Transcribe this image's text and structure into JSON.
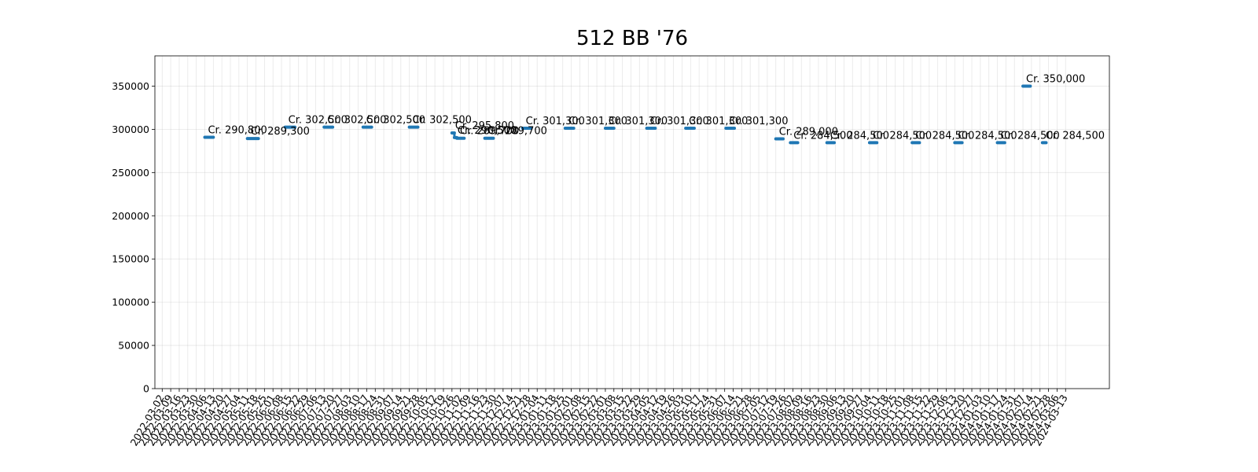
{
  "chart_data": {
    "type": "line",
    "title": "512 BB '76",
    "xlabel": "",
    "ylabel": "",
    "ylim": [
      0,
      385000
    ],
    "yticks": [
      0,
      50000,
      100000,
      150000,
      200000,
      250000,
      300000,
      350000
    ],
    "grid": true,
    "legend": "none",
    "color": "#1f77b4",
    "xtick_labels": [
      "2022-03-02",
      "2022-03-09",
      "2022-03-16",
      "2022-03-23",
      "2022-03-30",
      "2022-04-06",
      "2022-04-13",
      "2022-04-20",
      "2022-04-27",
      "2022-05-04",
      "2022-05-11",
      "2022-05-18",
      "2022-05-25",
      "2022-06-01",
      "2022-06-08",
      "2022-06-15",
      "2022-06-22",
      "2022-06-29",
      "2022-07-06",
      "2022-07-13",
      "2022-07-20",
      "2022-07-27",
      "2022-08-03",
      "2022-08-10",
      "2022-08-17",
      "2022-08-24",
      "2022-08-31",
      "2022-09-07",
      "2022-09-14",
      "2022-09-21",
      "2022-09-28",
      "2022-10-05",
      "2022-10-12",
      "2022-10-19",
      "2022-10-26",
      "2022-11-02",
      "2022-11-09",
      "2022-11-16",
      "2022-11-23",
      "2022-11-30",
      "2022-12-07",
      "2022-12-14",
      "2022-12-21",
      "2022-12-28",
      "2023-01-04",
      "2023-01-11",
      "2023-01-18",
      "2023-01-25",
      "2023-02-01",
      "2023-02-08",
      "2023-02-15",
      "2023-02-22",
      "2023-03-01",
      "2023-03-08",
      "2023-03-15",
      "2023-03-22",
      "2023-03-29",
      "2023-04-05",
      "2023-04-12",
      "2023-04-19",
      "2023-04-26",
      "2023-05-03",
      "2023-05-10",
      "2023-05-17",
      "2023-05-24",
      "2023-05-31",
      "2023-06-07",
      "2023-06-14",
      "2023-06-21",
      "2023-06-28",
      "2023-07-05",
      "2023-07-12",
      "2023-07-19",
      "2023-07-26",
      "2023-08-02",
      "2023-08-09",
      "2023-08-16",
      "2023-08-23",
      "2023-08-30",
      "2023-09-06",
      "2023-09-13",
      "2023-09-20",
      "2023-09-27",
      "2023-10-04",
      "2023-10-11",
      "2023-10-18",
      "2023-10-25",
      "2023-11-01",
      "2023-11-08",
      "2023-11-15",
      "2023-11-22",
      "2023-11-29",
      "2023-12-06",
      "2023-12-13",
      "2023-12-20",
      "2023-12-27",
      "2024-01-03",
      "2024-01-10",
      "2024-01-17",
      "2024-01-24",
      "2024-01-31",
      "2024-02-07",
      "2024-02-14",
      "2024-02-21",
      "2024-02-28",
      "2024-03-06",
      "2024-03-13"
    ],
    "segments": [
      {
        "x_start": "2022-04-06",
        "x_end": "2022-04-13",
        "y": 290800,
        "label": "Cr. 290,800"
      },
      {
        "x_start": "2022-05-11",
        "x_end": "2022-05-20",
        "y": 289300,
        "label": "Cr. 289,300"
      },
      {
        "x_start": "2022-06-11",
        "x_end": "2022-06-19",
        "y": 302500,
        "label": "Cr. 302,500"
      },
      {
        "x_start": "2022-07-13",
        "x_end": "2022-07-20",
        "y": 302500,
        "label": "Cr. 302,500"
      },
      {
        "x_start": "2022-08-14",
        "x_end": "2022-08-21",
        "y": 302500,
        "label": "Cr. 302,500"
      },
      {
        "x_start": "2022-09-21",
        "x_end": "2022-09-28",
        "y": 302500,
        "label": "Cr. 302,500"
      },
      {
        "x_start": "2022-10-26",
        "x_end": "2022-10-28",
        "y": 295800,
        "label": "Cr. 295,800"
      },
      {
        "x_start": "2022-10-28",
        "x_end": "2022-10-30",
        "y": 290500,
        "label": "Cr. 290,500"
      },
      {
        "x_start": "2022-10-30",
        "x_end": "2022-11-05",
        "y": 289700,
        "label": "Cr. 289,700"
      },
      {
        "x_start": "2022-11-22",
        "x_end": "2022-11-29",
        "y": 289700,
        "label": "Cr. 289,700"
      },
      {
        "x_start": "2022-12-23",
        "x_end": "2022-12-30",
        "y": 301300,
        "label": "Cr. 301,300"
      },
      {
        "x_start": "2023-01-27",
        "x_end": "2023-02-03",
        "y": 301300,
        "label": "Cr. 301,300"
      },
      {
        "x_start": "2023-03-01",
        "x_end": "2023-03-08",
        "y": 301300,
        "label": "Cr. 301,300"
      },
      {
        "x_start": "2023-04-04",
        "x_end": "2023-04-11",
        "y": 301300,
        "label": "Cr. 301,300"
      },
      {
        "x_start": "2023-05-06",
        "x_end": "2023-05-13",
        "y": 301300,
        "label": "Cr. 301,300"
      },
      {
        "x_start": "2023-06-08",
        "x_end": "2023-06-15",
        "y": 301300,
        "label": "Cr. 301,300"
      },
      {
        "x_start": "2023-07-19",
        "x_end": "2023-07-25",
        "y": 289000,
        "label": "Cr. 289,000"
      },
      {
        "x_start": "2023-07-31",
        "x_end": "2023-08-06",
        "y": 284500,
        "label": "Cr. 284,500"
      },
      {
        "x_start": "2023-08-30",
        "x_end": "2023-09-05",
        "y": 284500,
        "label": "Cr. 284,500"
      },
      {
        "x_start": "2023-10-04",
        "x_end": "2023-10-10",
        "y": 284500,
        "label": "Cr. 284,500"
      },
      {
        "x_start": "2023-11-08",
        "x_end": "2023-11-14",
        "y": 284500,
        "label": "Cr. 284,500"
      },
      {
        "x_start": "2023-12-13",
        "x_end": "2023-12-19",
        "y": 284500,
        "label": "Cr. 284,500"
      },
      {
        "x_start": "2024-01-17",
        "x_end": "2024-01-23",
        "y": 284500,
        "label": "Cr. 284,500"
      },
      {
        "x_start": "2024-02-07",
        "x_end": "2024-02-13",
        "y": 350000,
        "label": "Cr. 350,000"
      },
      {
        "x_start": "2024-02-23",
        "x_end": "2024-02-26",
        "y": 284500,
        "label": "Cr. 284,500"
      }
    ]
  }
}
